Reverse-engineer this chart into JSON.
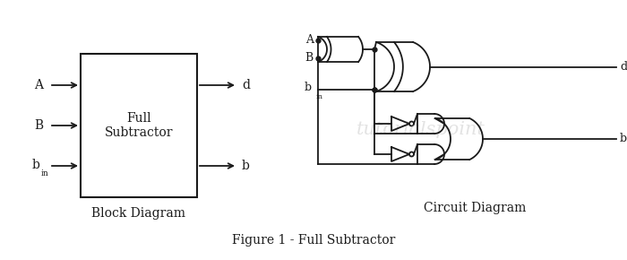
{
  "bg_color": "#ffffff",
  "line_color": "#1a1a1a",
  "title": "Figure 1 - Full Subtractor",
  "block_label": "Full\nSubtractor",
  "block_diagram_label": "Block Diagram",
  "circuit_diagram_label": "Circuit Diagram",
  "figsize": [
    7.0,
    2.9
  ],
  "dpi": 100
}
